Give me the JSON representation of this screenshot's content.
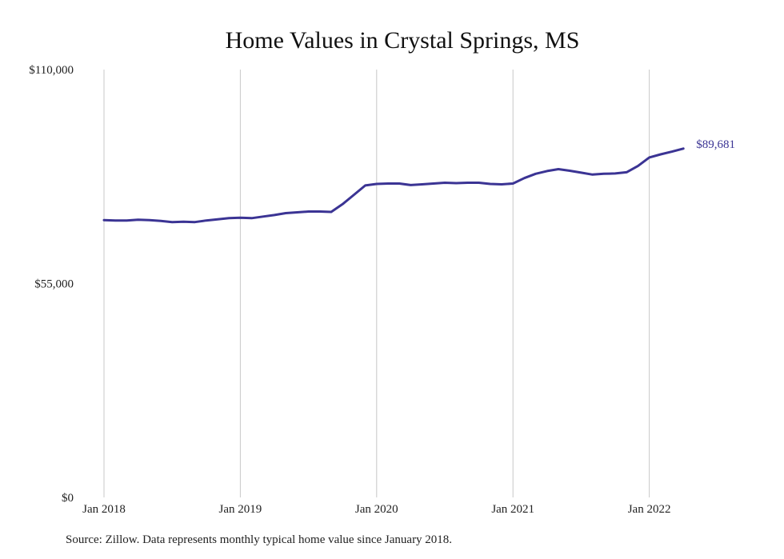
{
  "chart_data": {
    "type": "line",
    "title": "Home Values in Crystal Springs, MS",
    "xlabel": "",
    "ylabel": "",
    "x_start": "2018-01",
    "x_ticks": [
      "Jan 2018",
      "Jan 2019",
      "Jan 2020",
      "Jan 2021",
      "Jan 2022"
    ],
    "y_ticks": [
      "$0",
      "$55,000",
      "$110,000"
    ],
    "ylim": [
      0,
      110000
    ],
    "grid": {
      "vertical": true,
      "horizontal": false
    },
    "legend": "none",
    "end_label": "$89,681",
    "series": [
      {
        "color": "#3b3494",
        "values": [
          71300,
          71200,
          71200,
          71400,
          71300,
          71100,
          70800,
          70900,
          70800,
          71200,
          71500,
          71800,
          71900,
          71800,
          72200,
          72600,
          73100,
          73300,
          73500,
          73500,
          73400,
          75400,
          77800,
          80200,
          80600,
          80700,
          80700,
          80300,
          80500,
          80700,
          80900,
          80800,
          80900,
          80900,
          80600,
          80500,
          80700,
          82100,
          83200,
          83900,
          84400,
          84000,
          83500,
          83000,
          83200,
          83300,
          83600,
          85200,
          87400,
          88200,
          88900,
          89681
        ]
      }
    ]
  },
  "source_note": "Source: Zillow. Data represents monthly typical home value since January 2018."
}
